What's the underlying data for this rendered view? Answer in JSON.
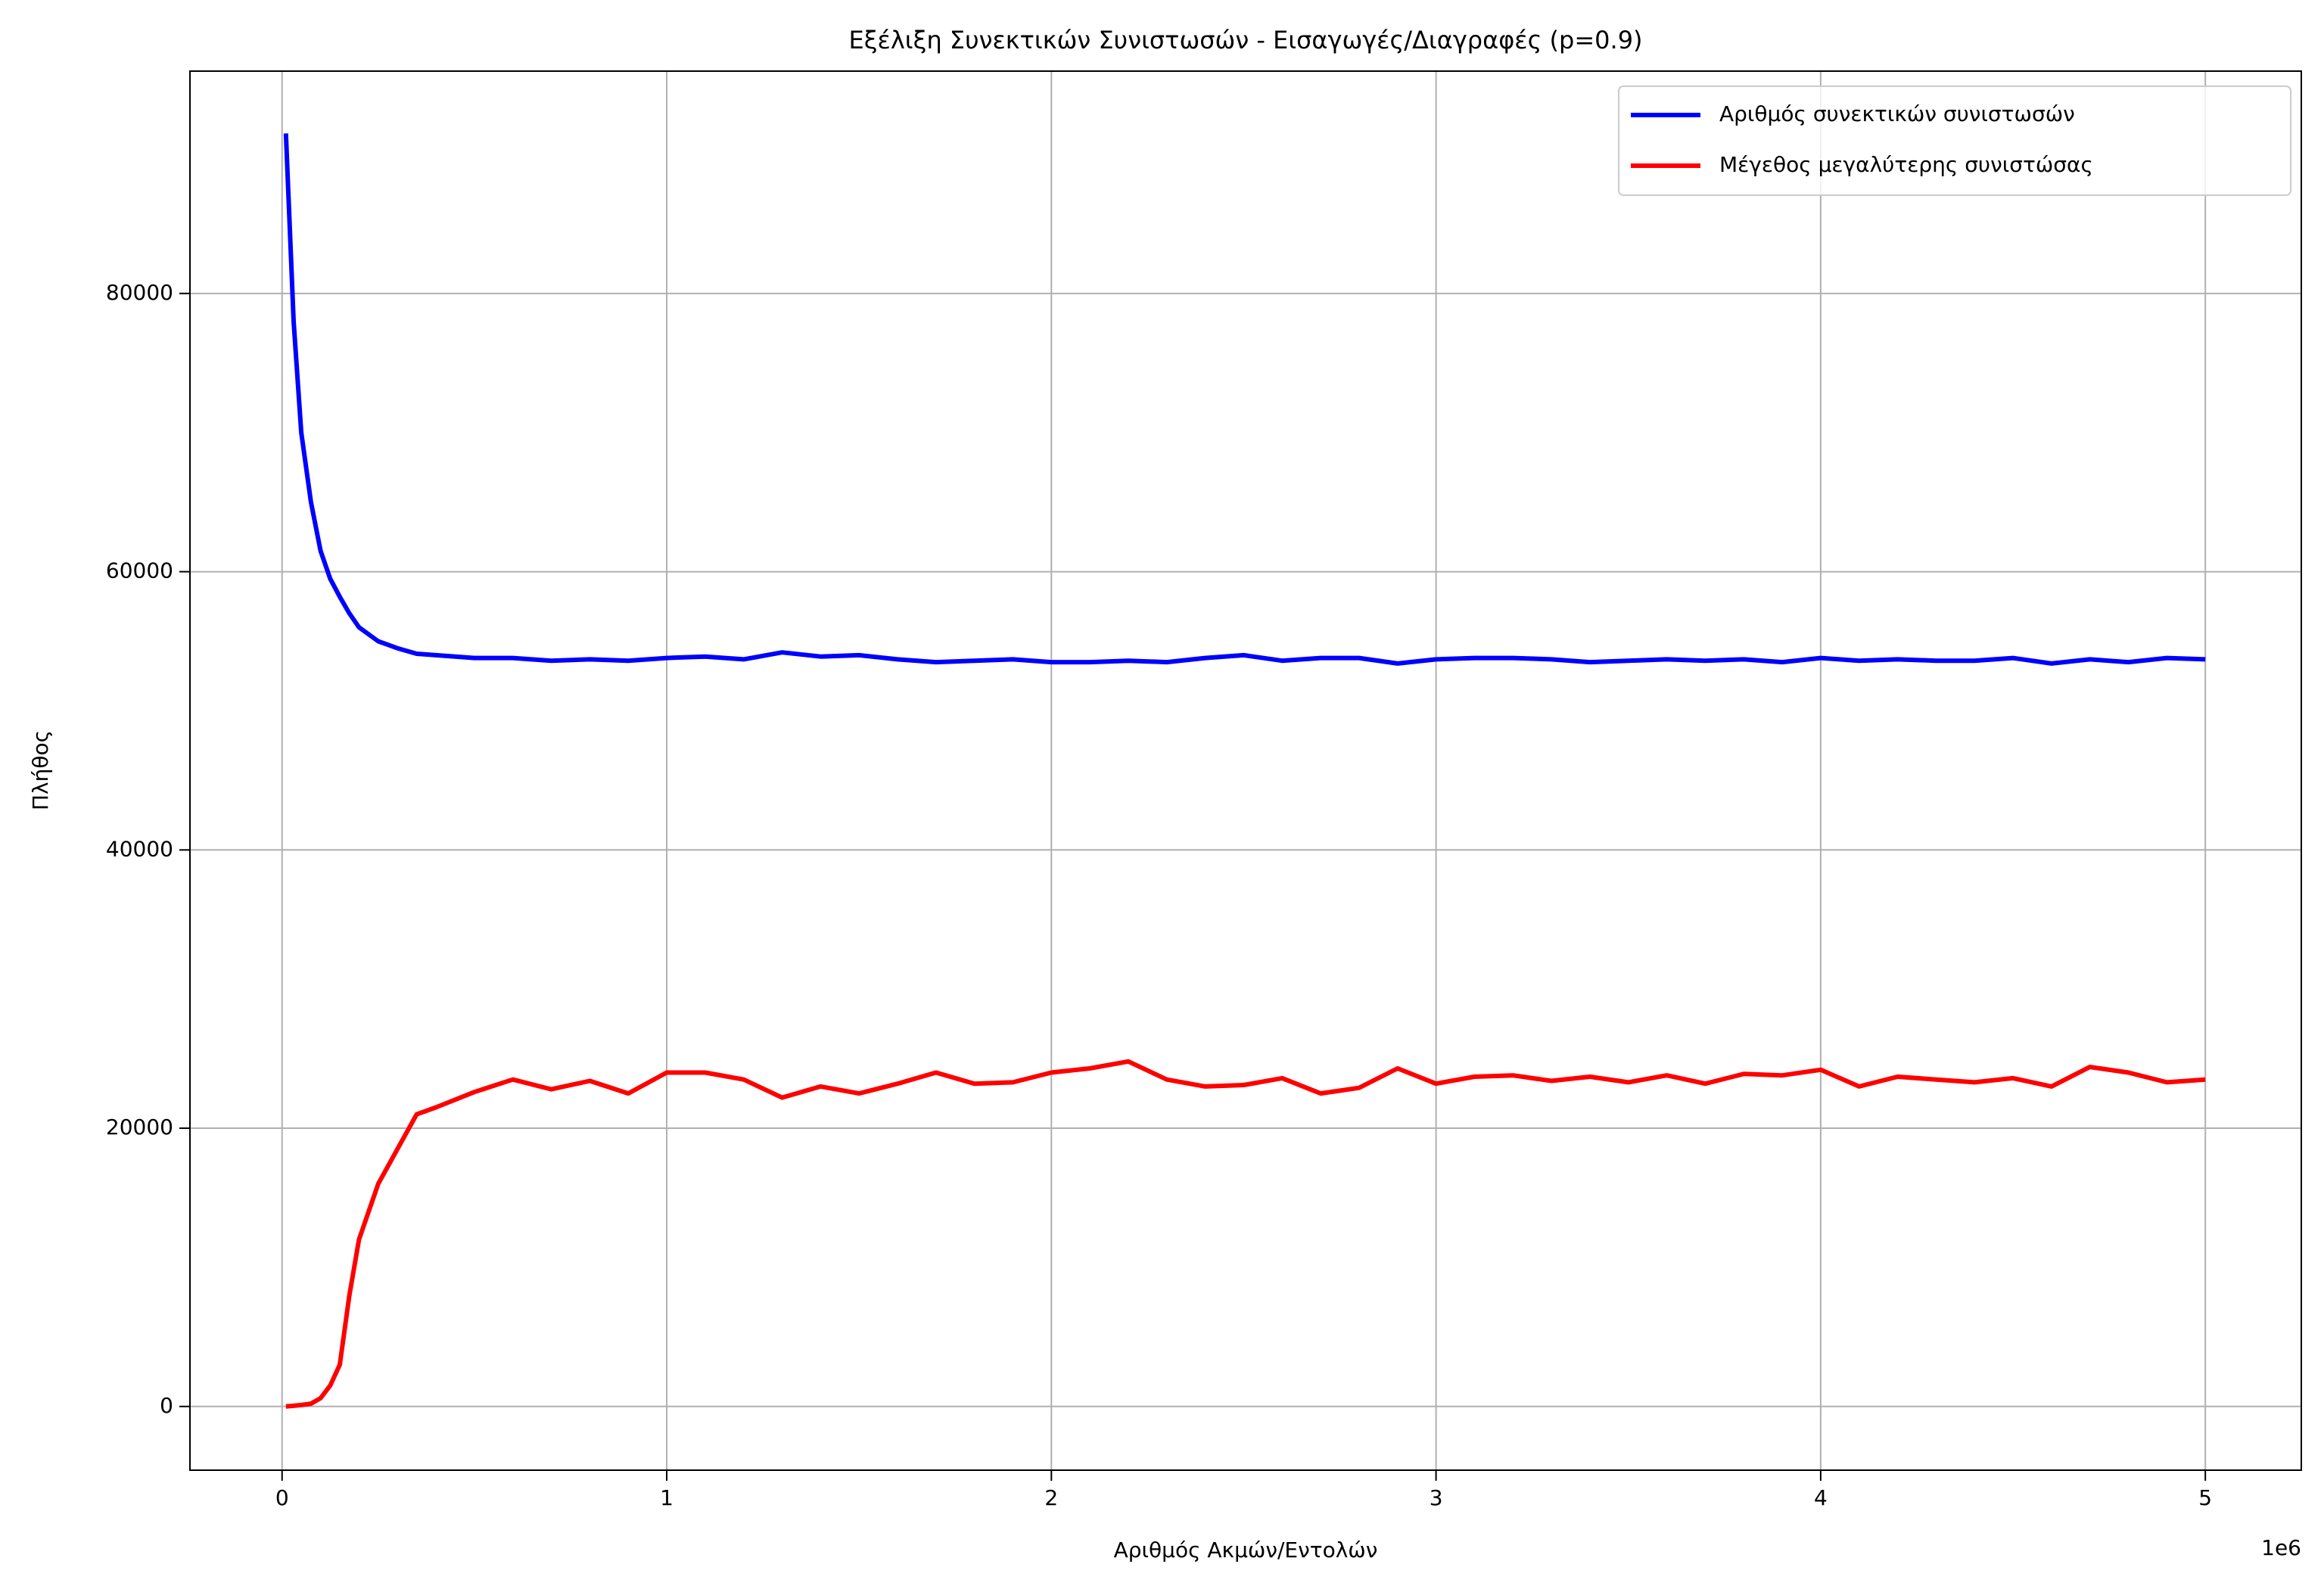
{
  "chart_data": {
    "type": "line",
    "title": "Εξέλιξη Συνεκτικών Συνιστωσών - Εισαγωγές/Διαγραφές (p=0.9)",
    "x_label": "Αριθμός Ακμών/Εντολών",
    "y_label": "Πλήθος",
    "x_offset_label": "1e6",
    "x": [
      10000,
      30000,
      50000,
      75000,
      100000,
      125000,
      150000,
      175000,
      200000,
      250000,
      300000,
      350000,
      400000,
      500000,
      600000,
      700000,
      800000,
      900000,
      1000000,
      1100000,
      1200000,
      1300000,
      1400000,
      1500000,
      1600000,
      1700000,
      1800000,
      1900000,
      2000000,
      2100000,
      2200000,
      2300000,
      2400000,
      2500000,
      2600000,
      2700000,
      2800000,
      2900000,
      3000000,
      3100000,
      3200000,
      3300000,
      3400000,
      3500000,
      3600000,
      3700000,
      3800000,
      3900000,
      4000000,
      4100000,
      4200000,
      4300000,
      4400000,
      4500000,
      4600000,
      4700000,
      4800000,
      4900000,
      5000000
    ],
    "series": [
      {
        "name": "Αριθμός συνεκτικών συνιστωσών",
        "color": "#0000ff",
        "values": [
          91500,
          78000,
          70000,
          65000,
          61500,
          59500,
          58200,
          57000,
          56000,
          55000,
          54500,
          54100,
          54000,
          53800,
          53800,
          53600,
          53700,
          53600,
          53800,
          53900,
          53700,
          54200,
          53900,
          54000,
          53700,
          53500,
          53600,
          53700,
          53500,
          53500,
          53600,
          53500,
          53800,
          54000,
          53600,
          53800,
          53800,
          53400,
          53700,
          53800,
          53800,
          53700,
          53500,
          53600,
          53700,
          53600,
          53700,
          53500,
          53800,
          53600,
          53700,
          53600,
          53600,
          53800,
          53400,
          53700,
          53500,
          53800,
          53700
        ]
      },
      {
        "name": "Μέγεθος μεγαλύτερης συνιστώσας",
        "color": "#ff0000",
        "values": [
          0,
          50,
          100,
          200,
          600,
          1500,
          3000,
          8000,
          12000,
          16000,
          18500,
          21000,
          21500,
          22600,
          23500,
          22800,
          23400,
          22500,
          24000,
          24000,
          23500,
          22200,
          23000,
          22500,
          23200,
          24000,
          23200,
          23300,
          24000,
          24300,
          24800,
          23500,
          23000,
          23100,
          23600,
          22500,
          22900,
          24300,
          23200,
          23700,
          23800,
          23400,
          23700,
          23300,
          23800,
          23200,
          23900,
          23800,
          24200,
          23000,
          23700,
          23500,
          23300,
          23600,
          23000,
          24400,
          24000,
          23300,
          23500
        ]
      }
    ],
    "xlim": [
      -239500,
      5249500
    ],
    "ylim": [
      -4580,
      95980
    ],
    "xticks": [
      0,
      {
        "value": 1000000,
        "label": "1"
      },
      {
        "value": 2000000,
        "label": "2"
      },
      {
        "value": 3000000,
        "label": "3"
      },
      {
        "value": 4000000,
        "label": "4"
      },
      {
        "value": 5000000,
        "label": "5"
      }
    ],
    "yticks": [
      0,
      20000,
      40000,
      60000,
      80000
    ],
    "grid": true,
    "legend": "upper right"
  }
}
